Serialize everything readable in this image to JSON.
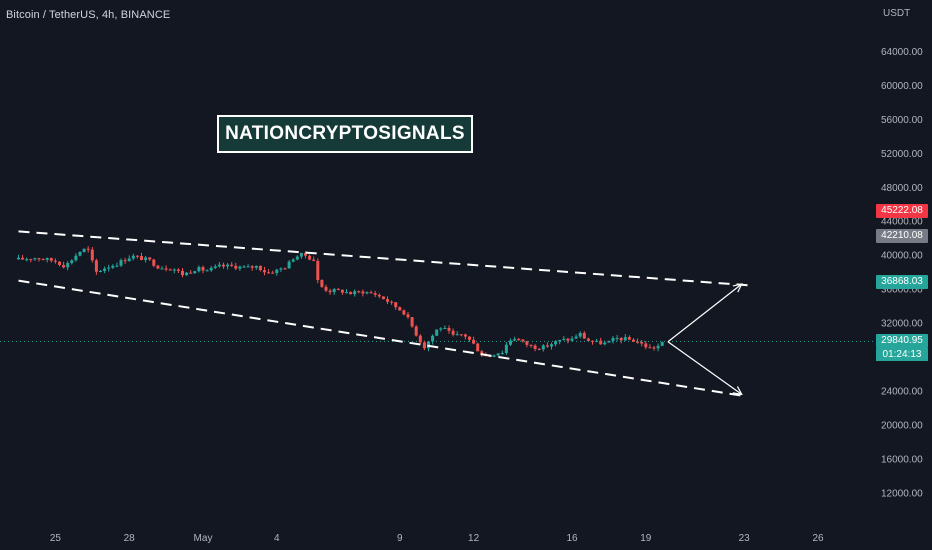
{
  "header": {
    "symbol_title": "Bitcoin / TetherUS, 4h, BINANCE",
    "currency": "USDT"
  },
  "watermark": {
    "text": "NATIONCRYPTOSIGNALS"
  },
  "colors": {
    "background": "#131722",
    "up": "#26a69a",
    "down": "#ef5350",
    "axis_text": "#b2b5be",
    "drawing": "#ffffff"
  },
  "chart_data": {
    "type": "candlestick",
    "interval": "4h",
    "y_scale": "linear",
    "ylim": [
      8000,
      68000
    ],
    "grid": false,
    "y_ticks": [
      {
        "value": 64000,
        "label": "64000.00"
      },
      {
        "value": 60000,
        "label": "60000.00"
      },
      {
        "value": 56000,
        "label": "56000.00"
      },
      {
        "value": 52000,
        "label": "52000.00"
      },
      {
        "value": 48000,
        "label": "48000.00"
      },
      {
        "value": 44000,
        "label": "44000.00"
      },
      {
        "value": 40000,
        "label": "40000.00"
      },
      {
        "value": 36000,
        "label": "36000.00"
      },
      {
        "value": 32000,
        "label": "32000.00"
      },
      {
        "value": 28000,
        "label": "28000.00"
      },
      {
        "value": 24000,
        "label": "24000.00"
      },
      {
        "value": 20000,
        "label": "20000.00"
      },
      {
        "value": 16000,
        "label": "16000.00"
      },
      {
        "value": 12000,
        "label": "12000.00"
      }
    ],
    "x_ticks": [
      {
        "day": -6,
        "label": "25"
      },
      {
        "day": -3,
        "label": "28"
      },
      {
        "day": 0,
        "label": "May"
      },
      {
        "day": 3,
        "label": "4"
      },
      {
        "day": 8,
        "label": "9"
      },
      {
        "day": 11,
        "label": "12"
      },
      {
        "day": 15,
        "label": "16"
      },
      {
        "day": 18,
        "label": "19"
      },
      {
        "day": 22,
        "label": "23"
      },
      {
        "day": 25,
        "label": "26"
      }
    ],
    "price_badges": [
      {
        "value": 45222.08,
        "label": "45222.08",
        "color": "#f23645"
      },
      {
        "value": 42210.08,
        "label": "42210.08",
        "color": "#787b86"
      },
      {
        "value": 36868.03,
        "label": "36868.03",
        "color": "#26a69a"
      },
      {
        "value": 29840.95,
        "label": "29840.95",
        "color": "#26a69a"
      }
    ],
    "current_price": 29840.95,
    "countdown": "01:24:13",
    "path": [
      [
        -7.5,
        39500
      ],
      [
        -6.8,
        39700
      ],
      [
        -6.0,
        39300
      ],
      [
        -5.6,
        38700
      ],
      [
        -5.2,
        39900
      ],
      [
        -4.9,
        40700
      ],
      [
        -4.6,
        40500
      ],
      [
        -4.4,
        37900
      ],
      [
        -4.0,
        38500
      ],
      [
        -3.5,
        39000
      ],
      [
        -2.9,
        39900
      ],
      [
        -2.2,
        39400
      ],
      [
        -1.8,
        38600
      ],
      [
        -1.2,
        38400
      ],
      [
        -0.8,
        37700
      ],
      [
        -0.3,
        38400
      ],
      [
        0.2,
        38200
      ],
      [
        0.7,
        38700
      ],
      [
        1.2,
        38700
      ],
      [
        1.8,
        38500
      ],
      [
        2.2,
        38700
      ],
      [
        2.6,
        37900
      ],
      [
        3.0,
        38200
      ],
      [
        3.4,
        38700
      ],
      [
        3.7,
        39800
      ],
      [
        4.1,
        40100
      ],
      [
        4.5,
        39400
      ],
      [
        4.7,
        36500
      ],
      [
        5.1,
        35800
      ],
      [
        5.6,
        35800
      ],
      [
        6.0,
        35500
      ],
      [
        6.5,
        35700
      ],
      [
        7.0,
        35400
      ],
      [
        7.4,
        34800
      ],
      [
        7.8,
        34000
      ],
      [
        8.2,
        33200
      ],
      [
        8.5,
        31600
      ],
      [
        8.8,
        30000
      ],
      [
        9.0,
        29200
      ],
      [
        9.3,
        30400
      ],
      [
        9.6,
        31600
      ],
      [
        9.9,
        31100
      ],
      [
        10.2,
        30400
      ],
      [
        10.6,
        30700
      ],
      [
        11.0,
        29500
      ],
      [
        11.3,
        28400
      ],
      [
        11.6,
        28000
      ],
      [
        11.9,
        28500
      ],
      [
        12.2,
        28600
      ],
      [
        12.4,
        29900
      ],
      [
        12.7,
        30300
      ],
      [
        13.0,
        29700
      ],
      [
        13.4,
        29200
      ],
      [
        13.8,
        29100
      ],
      [
        14.2,
        29600
      ],
      [
        14.6,
        30000
      ],
      [
        15.0,
        30100
      ],
      [
        15.3,
        30800
      ],
      [
        15.6,
        30000
      ],
      [
        16.0,
        29700
      ],
      [
        16.4,
        29600
      ],
      [
        16.8,
        30200
      ],
      [
        17.2,
        30100
      ],
      [
        17.6,
        29900
      ],
      [
        17.9,
        29400
      ],
      [
        18.2,
        29000
      ],
      [
        18.5,
        29300
      ],
      [
        18.8,
        29840.95
      ]
    ],
    "drawings": {
      "channel_upper": [
        [
          -7.5,
          42800
        ],
        [
          22.4,
          36400
        ]
      ],
      "channel_lower": [
        [
          -7.5,
          37000
        ],
        [
          22.0,
          23400
        ]
      ],
      "arrow_up": [
        [
          18.9,
          29800
        ],
        [
          21.9,
          36600
        ]
      ],
      "arrow_down": [
        [
          18.9,
          29800
        ],
        [
          21.9,
          23600
        ]
      ]
    }
  },
  "current_price_label": "29840.95"
}
